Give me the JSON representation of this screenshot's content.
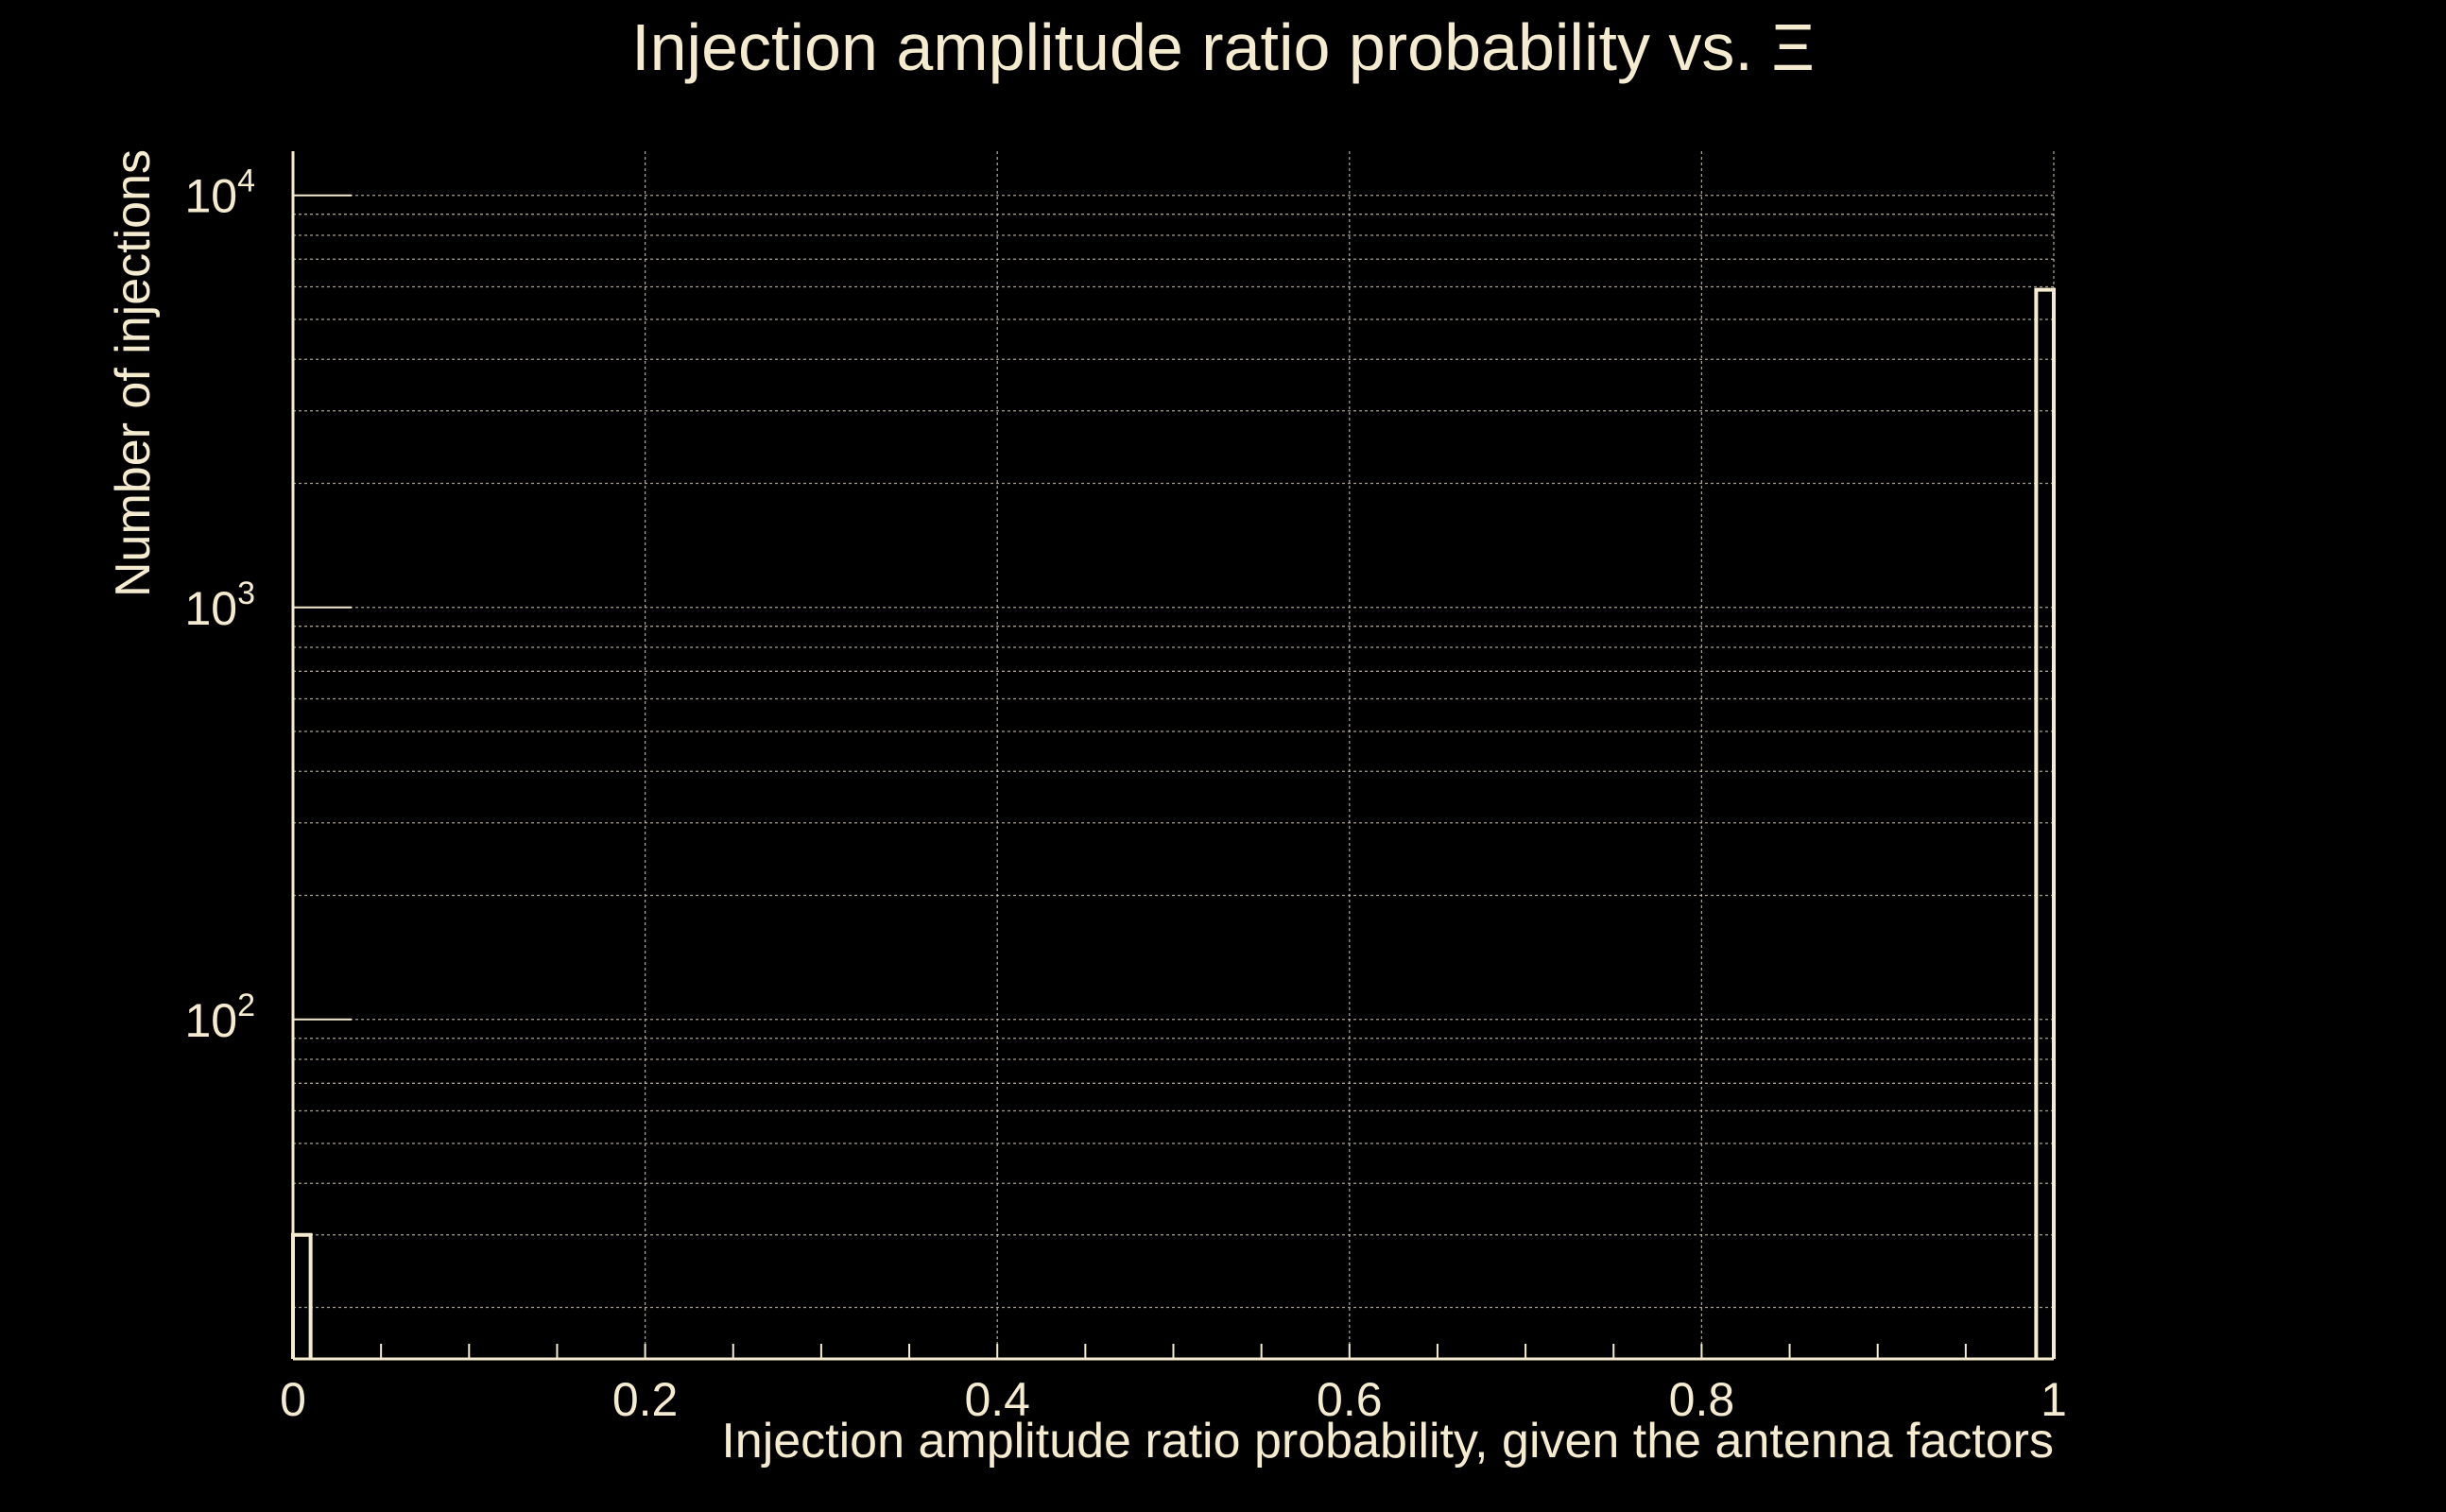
{
  "chart_data": {
    "type": "bar",
    "title": "Injection amplitude ratio probability vs. Ξ",
    "xlabel": "Injection amplitude ratio probability, given the antenna factors",
    "ylabel": "Number of injections",
    "xlim": [
      0,
      1
    ],
    "ylim": [
      15,
      12800
    ],
    "yscale": "log",
    "grid": true,
    "x_ticks": [
      "0",
      "0.2",
      "0.4",
      "0.6",
      "0.8",
      "1"
    ],
    "y_ticks": [
      {
        "base": "10",
        "exp": "2",
        "value": 100
      },
      {
        "base": "10",
        "exp": "3",
        "value": 1000
      },
      {
        "base": "10",
        "exp": "4",
        "value": 10000
      }
    ],
    "bins": [
      {
        "x0": 0.0,
        "x1": 0.01,
        "count": 30
      },
      {
        "x0": 0.99,
        "x1": 1.0,
        "count": 5900
      }
    ],
    "colors": {
      "background": "#000000",
      "foreground": "#f5ecd0",
      "grid": "#cfc9b8"
    }
  }
}
